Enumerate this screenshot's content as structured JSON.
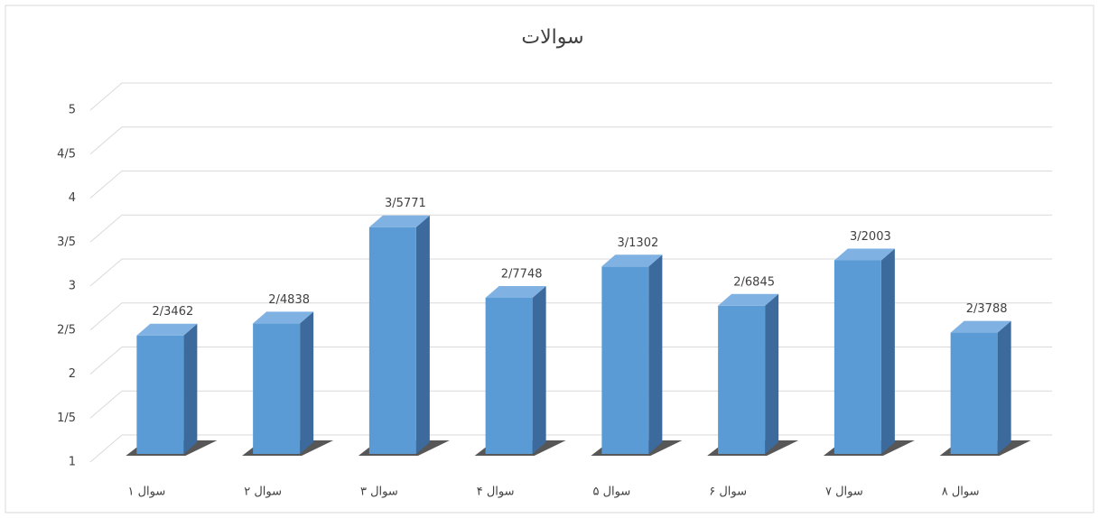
{
  "chart_data": {
    "type": "bar3d",
    "title": "سوالات",
    "categories": [
      "سوال ۱",
      "سوال ۲",
      "سوال ۳",
      "سوال ۴",
      "سوال ۵",
      "سوال ۶",
      "سوال ۷",
      "سوال ۸"
    ],
    "values": [
      2.3462,
      2.4838,
      3.5771,
      2.7748,
      3.1302,
      2.6845,
      3.2003,
      2.3788
    ],
    "value_labels": [
      "2/3462",
      "2/4838",
      "3/5771",
      "2/7748",
      "3/1302",
      "2/6845",
      "3/2003",
      "2/3788"
    ],
    "color": "#5b9bd5",
    "ylim": [
      1,
      5
    ],
    "yticks": [
      1,
      {
        "value": 1.5,
        "label": "1/5"
      },
      2,
      {
        "value": 2.5,
        "label": "2/5"
      },
      3,
      {
        "value": 3.5,
        "label": "3/5"
      },
      4,
      {
        "value": 4.5,
        "label": "4/5"
      },
      5
    ],
    "grid": true
  }
}
